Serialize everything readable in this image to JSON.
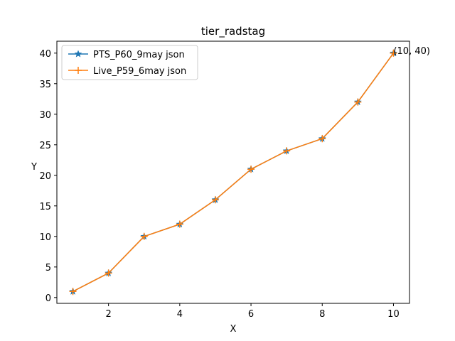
{
  "chart_data": {
    "type": "line",
    "title": "tier_radstag",
    "xlabel": "X",
    "ylabel": "Y",
    "xlim": [
      0.55,
      10.45
    ],
    "ylim": [
      -0.95,
      41.95
    ],
    "xticks": [
      2,
      4,
      6,
      8,
      10
    ],
    "yticks": [
      0,
      5,
      10,
      15,
      20,
      25,
      30,
      35,
      40
    ],
    "grid": false,
    "legend_position": "top-left",
    "series": [
      {
        "name": "PTS_P60_9may json",
        "color": "#1f77b4",
        "marker": "star",
        "x": [
          1,
          2,
          3,
          4,
          5,
          6,
          7,
          8,
          9,
          10
        ],
        "y": [
          1,
          4,
          10,
          12,
          16,
          21,
          24,
          26,
          32,
          40
        ]
      },
      {
        "name": "Live_P59_6may json",
        "color": "#ff7f0e",
        "marker": "plus",
        "x": [
          1,
          2,
          3,
          4,
          5,
          6,
          7,
          8,
          9,
          10
        ],
        "y": [
          1,
          4,
          10,
          12,
          16,
          21,
          24,
          26,
          32,
          40
        ]
      }
    ],
    "annotations": [
      {
        "text": "(10, 40)",
        "x": 10,
        "y": 40
      }
    ]
  }
}
